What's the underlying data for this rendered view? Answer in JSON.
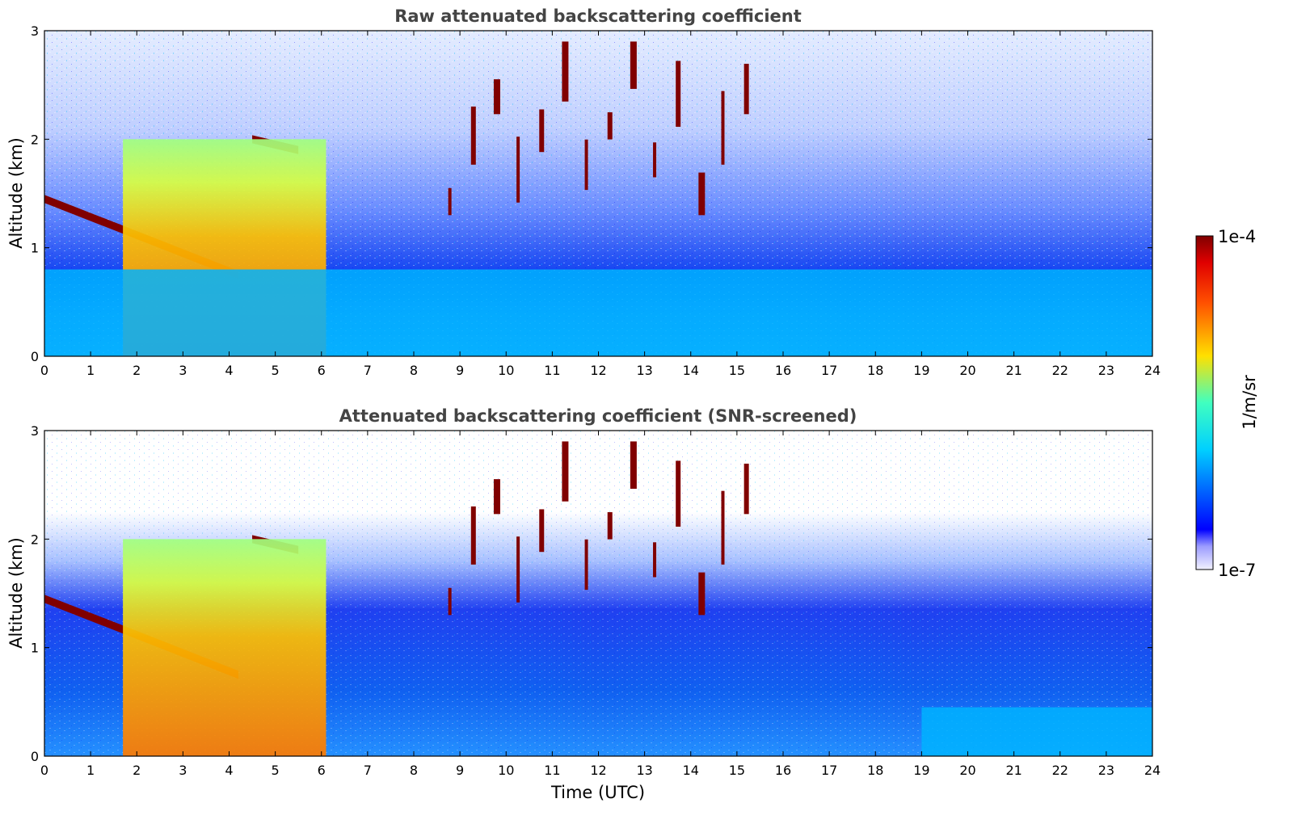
{
  "figure": {
    "panels": [
      {
        "title": "Raw attenuated backscattering coefficient",
        "ylabel": "Altitude (km)",
        "xlabel": ""
      },
      {
        "title": "Attenuated backscattering coefficient (SNR-screened)",
        "ylabel": "Altitude (km)",
        "xlabel": "Time (UTC)"
      }
    ],
    "x_ticks": [
      "0",
      "1",
      "2",
      "3",
      "4",
      "5",
      "6",
      "7",
      "8",
      "9",
      "10",
      "11",
      "12",
      "13",
      "14",
      "15",
      "16",
      "17",
      "18",
      "19",
      "20",
      "21",
      "22",
      "23",
      "24"
    ],
    "y_ticks": [
      "0",
      "1",
      "2",
      "3"
    ],
    "colorbar": {
      "max_label": "1e-4",
      "min_label": "1e-7",
      "label": "1/m/sr"
    }
  },
  "chart_data": [
    {
      "type": "heatmap",
      "title": "Raw attenuated backscattering coefficient",
      "xlabel": "",
      "ylabel": "Altitude (km)",
      "xlim": [
        0,
        24
      ],
      "ylim": [
        0,
        3
      ],
      "zscale": "log",
      "zlim": [
        1e-07,
        0.0001
      ],
      "colormap": "jet",
      "features": [
        {
          "name": "cloud layer",
          "time": [
            0,
            4.2
          ],
          "altitude_km": [
            1.45,
            0.75
          ],
          "beta": 0.0001
        },
        {
          "name": "cloud layer",
          "time": [
            4.5,
            5.5
          ],
          "altitude_km": [
            2.0,
            1.9
          ],
          "beta": 0.0001
        },
        {
          "name": "high backscatter region",
          "time": [
            1.7,
            6.1
          ],
          "altitude_km": [
            0,
            2.0
          ],
          "beta": 3e-05
        },
        {
          "name": "cirrus streaks",
          "time": [
            8.5,
            15.4
          ],
          "altitude_km": [
            1.3,
            2.9
          ],
          "beta": 0.0001
        },
        {
          "name": "boundary layer",
          "time": [
            0,
            24
          ],
          "altitude_km": [
            0,
            0.8
          ],
          "beta": 1e-06
        }
      ]
    },
    {
      "type": "heatmap",
      "title": "Attenuated backscattering coefficient (SNR-screened)",
      "xlabel": "Time (UTC)",
      "ylabel": "Altitude (km)",
      "xlim": [
        0,
        24
      ],
      "ylim": [
        0,
        3
      ],
      "zscale": "log",
      "zlim": [
        1e-07,
        0.0001
      ],
      "colormap": "jet",
      "features": [
        {
          "name": "cloud layer",
          "time": [
            0,
            4.2
          ],
          "altitude_km": [
            1.45,
            0.75
          ],
          "beta": 0.0001
        },
        {
          "name": "cloud layer",
          "time": [
            4.5,
            5.5
          ],
          "altitude_km": [
            2.0,
            1.9
          ],
          "beta": 0.0001
        },
        {
          "name": "high backscatter region",
          "time": [
            1.7,
            6.1
          ],
          "altitude_km": [
            0,
            2.0
          ],
          "beta": 3e-05
        },
        {
          "name": "cirrus streaks",
          "time": [
            8.5,
            15.4
          ],
          "altitude_km": [
            1.3,
            2.9
          ],
          "beta": 0.0001
        },
        {
          "name": "screened boundary layer",
          "time": [
            19,
            24
          ],
          "altitude_km": [
            0,
            0.45
          ],
          "beta": 1e-06
        }
      ]
    }
  ]
}
